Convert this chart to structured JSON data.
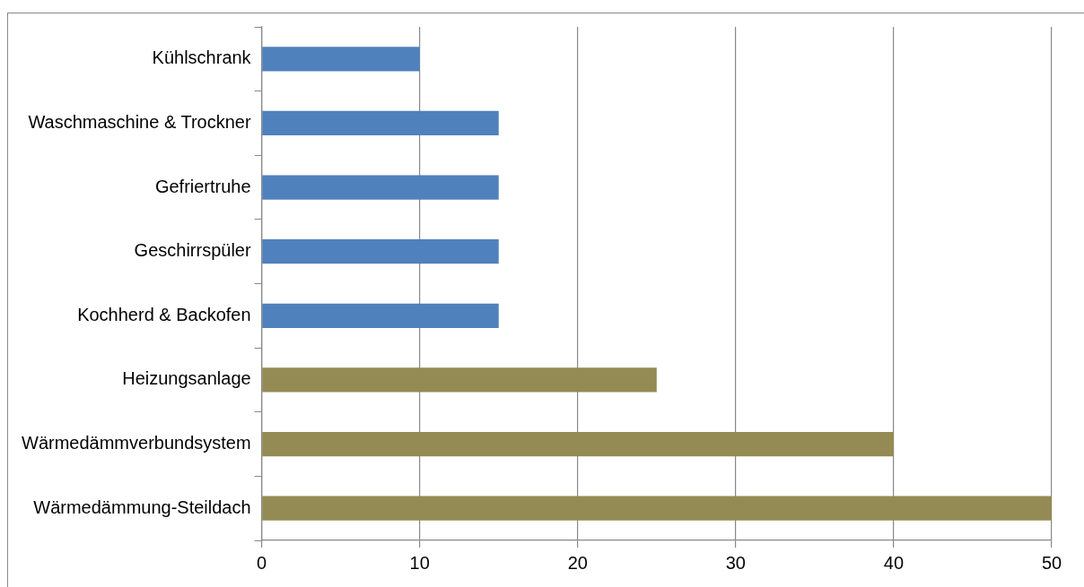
{
  "chart_data": {
    "type": "bar",
    "orientation": "horizontal",
    "categories": [
      "Kühlschrank",
      "Waschmaschine & Trockner",
      "Gefriertruhe",
      "Geschirrspüler",
      "Kochherd & Backofen",
      "Heizungsanlage",
      "Wärmedämmverbundsystem",
      "Wärmedämmung-Steildach"
    ],
    "values": [
      10,
      15,
      15,
      15,
      15,
      25,
      40,
      50
    ],
    "colors": [
      "#4f81bd",
      "#4f81bd",
      "#4f81bd",
      "#4f81bd",
      "#4f81bd",
      "#948a54",
      "#948a54",
      "#948a54"
    ],
    "xlim": [
      0,
      50
    ],
    "xticks": [
      0,
      10,
      20,
      30,
      40,
      50
    ],
    "grid": "x",
    "legend": false
  }
}
